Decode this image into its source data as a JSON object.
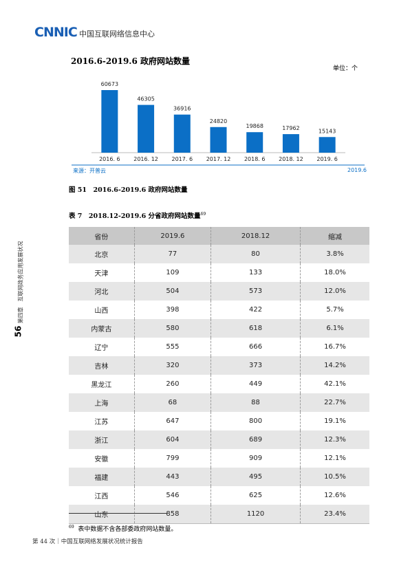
{
  "header": {
    "logo": "CNNIC",
    "org": "中国互联网络信息中心"
  },
  "chart_data": {
    "type": "bar",
    "title": "2016.6-2019.6 政府网站数量",
    "unit": "单位：个",
    "categories": [
      "2016. 6",
      "2016. 12",
      "2017. 6",
      "2017. 12",
      "2018. 6",
      "2018. 12",
      "2019. 6"
    ],
    "values": [
      60673,
      46305,
      36916,
      24820,
      19868,
      17962,
      15143
    ],
    "color": "#0b6fc6",
    "source": "来源：开普云",
    "date": "2019.6"
  },
  "figure_caption": "图 51　2016.6-2019.6 政府网站数量",
  "table": {
    "caption": "表 7　2018.12-2019.6 分省政府网站数量",
    "footnote_ref": "69",
    "columns": [
      "省份",
      "2019.6",
      "2018.12",
      "缩减"
    ],
    "rows": [
      [
        "北京",
        77,
        80,
        "3.8%"
      ],
      [
        "天津",
        109,
        133,
        "18.0%"
      ],
      [
        "河北",
        504,
        573,
        "12.0%"
      ],
      [
        "山西",
        398,
        422,
        "5.7%"
      ],
      [
        "内蒙古",
        580,
        618,
        "6.1%"
      ],
      [
        "辽宁",
        555,
        666,
        "16.7%"
      ],
      [
        "吉林",
        320,
        373,
        "14.2%"
      ],
      [
        "黑龙江",
        260,
        449,
        "42.1%"
      ],
      [
        "上海",
        68,
        88,
        "22.7%"
      ],
      [
        "江苏",
        647,
        800,
        "19.1%"
      ],
      [
        "浙江",
        604,
        689,
        "12.3%"
      ],
      [
        "安徽",
        799,
        909,
        "12.1%"
      ],
      [
        "福建",
        443,
        495,
        "10.5%"
      ],
      [
        "江西",
        546,
        625,
        "12.6%"
      ],
      [
        "山东",
        858,
        1120,
        "23.4%"
      ]
    ]
  },
  "footnote": {
    "number": "69",
    "text": "表中数据不含各部委政府网站数量。"
  },
  "sidebar": {
    "page": "56",
    "chapter": "第四章　互联网政务应用发展状况"
  },
  "footer": "第 44 次｜中国互联网络发展状况统计报告"
}
